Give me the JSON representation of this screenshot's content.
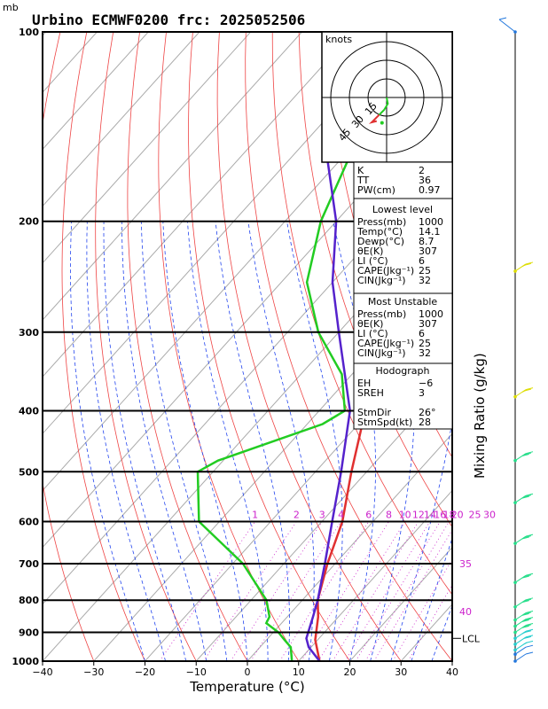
{
  "header": {
    "unit_label": "mb",
    "title": "Urbino ECMWF0200 frc: 2025052506"
  },
  "colors": {
    "temperature": "#e03030",
    "dewpoint": "#22cc22",
    "parcel": "#5522cc",
    "isotherm": "#aaaaaa",
    "dry_adiabat": "#ee4444",
    "moist_adiabat": "#2244ee",
    "mixing_ratio": "#cc22cc",
    "wind_blue": "#2277dd",
    "wind_yellow": "#dddd00",
    "wind_green": "#22dd88",
    "wind_cyan": "#22cccc"
  },
  "chart_data": {
    "type": "line",
    "title": "Urbino ECMWF0200 frc: 2025052506",
    "xlabel": "Temperature (°C)",
    "ylabel": "mb",
    "right_label": "Mixing Ratio (g/kg)",
    "xlim": [
      -40,
      40
    ],
    "ylim": [
      1000,
      100
    ],
    "x_ticks": [
      -40,
      -30,
      -20,
      -10,
      0,
      10,
      20,
      30,
      40
    ],
    "y_ticks": [
      1000,
      900,
      800,
      700,
      600,
      500,
      400,
      300,
      200,
      100
    ],
    "mixing_ratio_labels": [
      "1",
      "2",
      "3",
      "4",
      "6",
      "8",
      "10",
      "12",
      "14",
      "16",
      "18",
      "20",
      "25",
      "30"
    ],
    "mixing_ratio_values": [
      1,
      2,
      3,
      4,
      6,
      8,
      10,
      12,
      14,
      16,
      18,
      20,
      25,
      30
    ],
    "theta_labels": [
      "35",
      "40"
    ],
    "lcl_label": "LCL",
    "lcl_pressure": 920,
    "series": [
      {
        "name": "Temperature",
        "pressure": [
          1000,
          925,
          850,
          800,
          700,
          600,
          500,
          400,
          300,
          250,
          200,
          150,
          100
        ],
        "temp": [
          14.1,
          9.5,
          6.0,
          3.0,
          -1.5,
          -6.0,
          -13.0,
          -21.0,
          -33.0,
          -43.0,
          -39.0,
          -26.0,
          -9.0
        ]
      },
      {
        "name": "Dewpoint",
        "pressure": [
          1000,
          950,
          925,
          900,
          870,
          850,
          800,
          700,
          600,
          500,
          480,
          420,
          400,
          350,
          300,
          250,
          200,
          150,
          100
        ],
        "temp": [
          8.7,
          6.0,
          3.5,
          1.0,
          -3.0,
          -3.5,
          -7.0,
          -18.0,
          -34.0,
          -43.0,
          -41.0,
          -27.0,
          -25.0,
          -32.0,
          -44.0,
          -55.0,
          -63.0,
          -70.0,
          -75.0
        ]
      },
      {
        "name": "Parcel",
        "pressure": [
          1000,
          950,
          920,
          850,
          800,
          700,
          600,
          500,
          400,
          300,
          250,
          200,
          150,
          130
        ],
        "temp": [
          14.1,
          9.5,
          7.5,
          5.0,
          3.0,
          -2.0,
          -8.0,
          -15.0,
          -24.0,
          -40.0,
          -50.0,
          -60.0,
          -76.0,
          -80.0
        ]
      }
    ]
  },
  "hodograph": {
    "unit_label": "knots",
    "ring_labels": [
      "15",
      "30",
      "45"
    ],
    "ring_values": [
      15,
      30,
      45
    ],
    "path_u": [
      0,
      1,
      -2,
      -6,
      -10,
      -12,
      -8
    ],
    "path_v": [
      0,
      -5,
      -10,
      -14,
      -18,
      -20,
      -19
    ]
  },
  "indices": {
    "top": [
      {
        "label": "K",
        "value": "2"
      },
      {
        "label": "TT",
        "value": "36"
      },
      {
        "label": "PW(cm)",
        "value": "0.97"
      }
    ],
    "lowest": {
      "title": "Lowest level",
      "rows": [
        {
          "label": "Press(mb)",
          "value": "1000"
        },
        {
          "label": "Temp(°C)",
          "value": "14.1"
        },
        {
          "label": "Dewp(°C)",
          "value": "8.7"
        },
        {
          "label": "θE(K)",
          "value": "307"
        },
        {
          "label": "LI  (°C)",
          "value": "6"
        },
        {
          "label": "CAPE(Jkg⁻¹)",
          "value": "25"
        },
        {
          "label": "CIN(Jkg⁻¹)",
          "value": "32"
        }
      ]
    },
    "most_unstable": {
      "title": "Most Unstable",
      "rows": [
        {
          "label": "Press(mb)",
          "value": "1000"
        },
        {
          "label": "θE(K)",
          "value": "307"
        },
        {
          "label": "LI  (°C)",
          "value": "6"
        },
        {
          "label": "CAPE(Jkg⁻¹)",
          "value": "25"
        },
        {
          "label": "CIN(Jkg⁻¹)",
          "value": "32"
        }
      ]
    },
    "hodo": {
      "title": "Hodograph",
      "rows": [
        {
          "label": "EH",
          "value": "−6"
        },
        {
          "label": "SREH",
          "value": "3"
        },
        {
          "label": "",
          "value": ""
        },
        {
          "label": "StmDir",
          "value": "26°"
        },
        {
          "label": "StmSpd(kt)",
          "value": "28"
        }
      ]
    }
  },
  "wind_profile": {
    "levels": [
      {
        "pressure": 100,
        "speed": 10,
        "color": "blue"
      },
      {
        "pressure": 240,
        "speed": 25,
        "color": "yellow"
      },
      {
        "pressure": 380,
        "speed": 25,
        "color": "yellow"
      },
      {
        "pressure": 480,
        "speed": 30,
        "color": "green"
      },
      {
        "pressure": 560,
        "speed": 30,
        "color": "green"
      },
      {
        "pressure": 650,
        "speed": 30,
        "color": "green"
      },
      {
        "pressure": 750,
        "speed": 30,
        "color": "green"
      },
      {
        "pressure": 820,
        "speed": 30,
        "color": "green"
      },
      {
        "pressure": 860,
        "speed": 30,
        "color": "green"
      },
      {
        "pressure": 880,
        "speed": 30,
        "color": "green"
      },
      {
        "pressure": 900,
        "speed": 30,
        "color": "green"
      },
      {
        "pressure": 920,
        "speed": 25,
        "color": "cyan"
      },
      {
        "pressure": 940,
        "speed": 20,
        "color": "cyan"
      },
      {
        "pressure": 960,
        "speed": 15,
        "color": "cyan"
      },
      {
        "pressure": 975,
        "speed": 10,
        "color": "blue"
      },
      {
        "pressure": 1000,
        "speed": 10,
        "color": "blue"
      }
    ]
  }
}
